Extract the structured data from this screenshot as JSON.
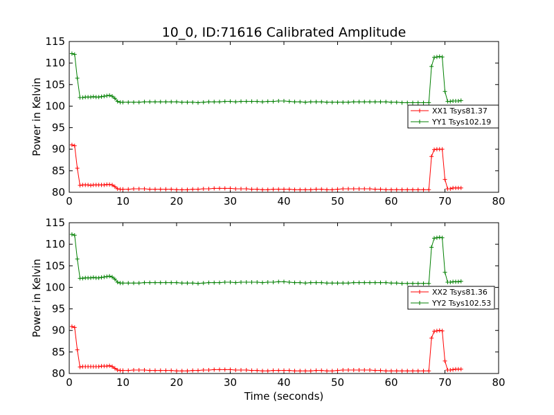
{
  "figure": {
    "title": "10_0, ID:71616 Calibrated Amplitude",
    "xlabel": "Time (seconds)"
  },
  "chart_data": [
    {
      "type": "line",
      "ylabel": "Power in Kelvin",
      "xlim": [
        0,
        80
      ],
      "ylim": [
        80,
        115
      ],
      "xticks": [
        0,
        10,
        20,
        30,
        40,
        50,
        60,
        70,
        80
      ],
      "yticks": [
        80,
        85,
        90,
        95,
        100,
        105,
        110,
        115
      ],
      "grid": false,
      "legend_position": "right",
      "series": [
        {
          "name": "XX1 Tsys81.37",
          "color": "#ff0000",
          "marker": "plus",
          "x": [
            0.5,
            1.0,
            1.5,
            2.0,
            2.5,
            3.0,
            3.5,
            4.0,
            4.5,
            5.0,
            5.5,
            6.0,
            6.5,
            7.0,
            7.5,
            8.0,
            8.5,
            9.0,
            9.5,
            10.0,
            11.0,
            12.0,
            13.0,
            14.0,
            15.0,
            16.0,
            17.0,
            18.0,
            19.0,
            20.0,
            21.0,
            22.0,
            23.0,
            24.0,
            25.0,
            26.0,
            27.0,
            28.0,
            29.0,
            30.0,
            31.0,
            32.0,
            33.0,
            34.0,
            35.0,
            36.0,
            37.0,
            38.0,
            39.0,
            40.0,
            41.0,
            42.0,
            43.0,
            44.0,
            45.0,
            46.0,
            47.0,
            48.0,
            49.0,
            50.0,
            51.0,
            52.0,
            53.0,
            54.0,
            55.0,
            56.0,
            57.0,
            58.0,
            59.0,
            60.0,
            61.0,
            62.0,
            63.0,
            64.0,
            65.0,
            66.0,
            67.0,
            67.5,
            68.0,
            68.5,
            69.0,
            69.5,
            70.0,
            70.5,
            71.0,
            71.5,
            72.0,
            72.5,
            73.0
          ],
          "y": [
            91.0,
            90.8,
            85.6,
            81.6,
            81.7,
            81.7,
            81.7,
            81.6,
            81.7,
            81.7,
            81.7,
            81.7,
            81.7,
            81.8,
            81.8,
            81.7,
            81.3,
            80.8,
            80.7,
            80.7,
            80.7,
            80.8,
            80.8,
            80.8,
            80.7,
            80.7,
            80.7,
            80.7,
            80.7,
            80.6,
            80.6,
            80.6,
            80.7,
            80.7,
            80.8,
            80.8,
            80.9,
            80.9,
            80.9,
            80.9,
            80.8,
            80.8,
            80.8,
            80.7,
            80.7,
            80.6,
            80.6,
            80.7,
            80.7,
            80.7,
            80.7,
            80.6,
            80.6,
            80.6,
            80.6,
            80.7,
            80.7,
            80.6,
            80.6,
            80.7,
            80.8,
            80.8,
            80.8,
            80.8,
            80.8,
            80.8,
            80.7,
            80.7,
            80.6,
            80.6,
            80.6,
            80.6,
            80.6,
            80.6,
            80.6,
            80.6,
            80.6,
            88.3,
            89.9,
            90.0,
            90.0,
            90.0,
            83.0,
            80.8,
            80.8,
            81.0,
            81.0,
            81.0,
            81.0
          ]
        },
        {
          "name": "YY1 Tsys102.19",
          "color": "#007f00",
          "marker": "plus",
          "x": [
            0.5,
            1.0,
            1.5,
            2.0,
            2.5,
            3.0,
            3.5,
            4.0,
            4.5,
            5.0,
            5.5,
            6.0,
            6.5,
            7.0,
            7.5,
            8.0,
            8.5,
            9.0,
            9.5,
            10.0,
            11.0,
            12.0,
            13.0,
            14.0,
            15.0,
            16.0,
            17.0,
            18.0,
            19.0,
            20.0,
            21.0,
            22.0,
            23.0,
            24.0,
            25.0,
            26.0,
            27.0,
            28.0,
            29.0,
            30.0,
            31.0,
            32.0,
            33.0,
            34.0,
            35.0,
            36.0,
            37.0,
            38.0,
            39.0,
            40.0,
            41.0,
            42.0,
            43.0,
            44.0,
            45.0,
            46.0,
            47.0,
            48.0,
            49.0,
            50.0,
            51.0,
            52.0,
            53.0,
            54.0,
            55.0,
            56.0,
            57.0,
            58.0,
            59.0,
            60.0,
            61.0,
            62.0,
            63.0,
            64.0,
            65.0,
            66.0,
            67.0,
            67.5,
            68.0,
            68.5,
            69.0,
            69.5,
            70.0,
            70.5,
            71.0,
            71.5,
            72.0,
            72.5,
            73.0
          ],
          "y": [
            112.2,
            112.0,
            106.5,
            102.0,
            102.0,
            102.1,
            102.1,
            102.1,
            102.2,
            102.1,
            102.1,
            102.2,
            102.3,
            102.4,
            102.5,
            102.3,
            101.8,
            101.1,
            100.9,
            100.9,
            100.9,
            100.9,
            100.9,
            101.0,
            101.0,
            101.0,
            101.0,
            101.0,
            101.0,
            101.0,
            100.9,
            100.9,
            100.9,
            100.8,
            100.9,
            101.0,
            101.0,
            101.0,
            101.1,
            101.1,
            101.0,
            101.1,
            101.1,
            101.1,
            101.1,
            101.0,
            101.1,
            101.1,
            101.2,
            101.2,
            101.1,
            101.0,
            101.0,
            100.9,
            101.0,
            101.0,
            101.0,
            100.9,
            100.9,
            100.9,
            100.9,
            100.9,
            101.0,
            101.0,
            101.0,
            101.0,
            101.0,
            101.0,
            101.0,
            100.9,
            100.9,
            100.8,
            100.8,
            100.8,
            100.8,
            100.8,
            100.8,
            109.2,
            111.3,
            111.4,
            111.5,
            111.4,
            103.4,
            101.1,
            101.1,
            101.2,
            101.2,
            101.2,
            101.3
          ]
        }
      ]
    },
    {
      "type": "line",
      "ylabel": "Power in Kelvin",
      "xlabel": "Time (seconds)",
      "xlim": [
        0,
        80
      ],
      "ylim": [
        80,
        115
      ],
      "xticks": [
        0,
        10,
        20,
        30,
        40,
        50,
        60,
        70,
        80
      ],
      "yticks": [
        80,
        85,
        90,
        95,
        100,
        105,
        110,
        115
      ],
      "grid": false,
      "legend_position": "right",
      "series": [
        {
          "name": "XX2 Tsys81.36",
          "color": "#ff0000",
          "marker": "plus",
          "x": [
            0.5,
            1.0,
            1.5,
            2.0,
            2.5,
            3.0,
            3.5,
            4.0,
            4.5,
            5.0,
            5.5,
            6.0,
            6.5,
            7.0,
            7.5,
            8.0,
            8.5,
            9.0,
            9.5,
            10.0,
            11.0,
            12.0,
            13.0,
            14.0,
            15.0,
            16.0,
            17.0,
            18.0,
            19.0,
            20.0,
            21.0,
            22.0,
            23.0,
            24.0,
            25.0,
            26.0,
            27.0,
            28.0,
            29.0,
            30.0,
            31.0,
            32.0,
            33.0,
            34.0,
            35.0,
            36.0,
            37.0,
            38.0,
            39.0,
            40.0,
            41.0,
            42.0,
            43.0,
            44.0,
            45.0,
            46.0,
            47.0,
            48.0,
            49.0,
            50.0,
            51.0,
            52.0,
            53.0,
            54.0,
            55.0,
            56.0,
            57.0,
            58.0,
            59.0,
            60.0,
            61.0,
            62.0,
            63.0,
            64.0,
            65.0,
            66.0,
            67.0,
            67.5,
            68.0,
            68.5,
            69.0,
            69.5,
            70.0,
            70.5,
            71.0,
            71.5,
            72.0,
            72.5,
            73.0
          ],
          "y": [
            90.9,
            90.7,
            85.5,
            81.5,
            81.6,
            81.6,
            81.6,
            81.6,
            81.6,
            81.6,
            81.6,
            81.7,
            81.7,
            81.7,
            81.8,
            81.6,
            81.2,
            80.8,
            80.7,
            80.7,
            80.7,
            80.8,
            80.8,
            80.8,
            80.7,
            80.7,
            80.7,
            80.7,
            80.7,
            80.6,
            80.6,
            80.6,
            80.7,
            80.7,
            80.8,
            80.8,
            80.9,
            80.9,
            80.9,
            80.9,
            80.8,
            80.8,
            80.8,
            80.7,
            80.7,
            80.6,
            80.6,
            80.7,
            80.7,
            80.7,
            80.7,
            80.6,
            80.6,
            80.6,
            80.6,
            80.7,
            80.7,
            80.6,
            80.6,
            80.7,
            80.8,
            80.8,
            80.8,
            80.8,
            80.8,
            80.8,
            80.7,
            80.7,
            80.6,
            80.6,
            80.6,
            80.6,
            80.6,
            80.6,
            80.6,
            80.6,
            80.6,
            88.2,
            89.8,
            89.9,
            90.0,
            89.9,
            82.9,
            80.8,
            80.8,
            80.9,
            81.0,
            81.0,
            81.0
          ]
        },
        {
          "name": "YY2 Tsys102.53",
          "color": "#007f00",
          "marker": "plus",
          "x": [
            0.5,
            1.0,
            1.5,
            2.0,
            2.5,
            3.0,
            3.5,
            4.0,
            4.5,
            5.0,
            5.5,
            6.0,
            6.5,
            7.0,
            7.5,
            8.0,
            8.5,
            9.0,
            9.5,
            10.0,
            11.0,
            12.0,
            13.0,
            14.0,
            15.0,
            16.0,
            17.0,
            18.0,
            19.0,
            20.0,
            21.0,
            22.0,
            23.0,
            24.0,
            25.0,
            26.0,
            27.0,
            28.0,
            29.0,
            30.0,
            31.0,
            32.0,
            33.0,
            34.0,
            35.0,
            36.0,
            37.0,
            38.0,
            39.0,
            40.0,
            41.0,
            42.0,
            43.0,
            44.0,
            45.0,
            46.0,
            47.0,
            48.0,
            49.0,
            50.0,
            51.0,
            52.0,
            53.0,
            54.0,
            55.0,
            56.0,
            57.0,
            58.0,
            59.0,
            60.0,
            61.0,
            62.0,
            63.0,
            64.0,
            65.0,
            66.0,
            67.0,
            67.5,
            68.0,
            68.5,
            69.0,
            69.5,
            70.0,
            70.5,
            71.0,
            71.5,
            72.0,
            72.5,
            73.0
          ],
          "y": [
            112.3,
            112.1,
            106.6,
            102.1,
            102.1,
            102.2,
            102.2,
            102.2,
            102.3,
            102.2,
            102.2,
            102.3,
            102.4,
            102.5,
            102.6,
            102.4,
            101.9,
            101.2,
            101.0,
            101.0,
            101.0,
            101.0,
            101.0,
            101.1,
            101.1,
            101.1,
            101.1,
            101.1,
            101.1,
            101.1,
            101.0,
            101.0,
            101.0,
            100.9,
            101.0,
            101.1,
            101.1,
            101.1,
            101.2,
            101.2,
            101.1,
            101.2,
            101.2,
            101.2,
            101.2,
            101.1,
            101.2,
            101.2,
            101.3,
            101.3,
            101.2,
            101.1,
            101.1,
            101.0,
            101.1,
            101.1,
            101.1,
            101.0,
            101.0,
            101.0,
            101.0,
            101.0,
            101.1,
            101.1,
            101.1,
            101.1,
            101.1,
            101.1,
            101.1,
            101.0,
            101.0,
            100.9,
            100.9,
            100.9,
            100.9,
            100.9,
            100.9,
            109.3,
            111.4,
            111.5,
            111.6,
            111.5,
            103.5,
            101.2,
            101.2,
            101.3,
            101.3,
            101.3,
            101.4
          ]
        }
      ]
    }
  ]
}
